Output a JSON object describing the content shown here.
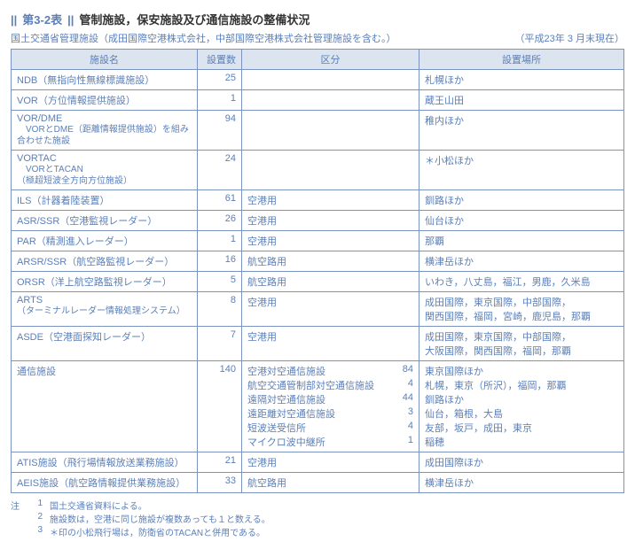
{
  "header": {
    "mark1": "||",
    "code": "第3-2表",
    "mark2": "||",
    "title": "管制施設，保安施設及び通信施設の整備状況"
  },
  "subhead": {
    "left": "国土交通省管理施設（成田国際空港株式会社，中部国際空港株式会社管理施設を含む。）",
    "right": "（平成23年 3 月末現在）"
  },
  "columns": [
    "施設名",
    "設置数",
    "区分",
    "設置場所"
  ],
  "rows": [
    {
      "name": "NDB（無指向性無線標識施設）",
      "count": "25",
      "div": "",
      "loc": "札幌ほか"
    },
    {
      "name": "VOR（方位情報提供施設）",
      "count": "1",
      "div": "",
      "loc": "蔵王山田"
    },
    {
      "name": "VOR/DME",
      "sub": "　VORとDME（距離情報提供施設）を組み合わせた施設",
      "count": "94",
      "div": "",
      "loc": "稚内ほか"
    },
    {
      "name": "VORTAC",
      "sub": "　VORとTACAN\n（極超短波全方向方位施設）",
      "count": "24",
      "div": "",
      "loc": "＊小松ほか"
    },
    {
      "name": "ILS（計器着陸装置）",
      "count": "61",
      "div": "空港用",
      "loc": "釧路ほか"
    },
    {
      "name": "ASR/SSR（空港監視レーダー）",
      "count": "26",
      "div": "空港用",
      "loc": "仙台ほか"
    },
    {
      "name": "PAR（精測進入レーダー）",
      "count": "1",
      "div": "空港用",
      "loc": "那覇"
    },
    {
      "name": "ARSR/SSR（航空路監視レーダー）",
      "count": "16",
      "div": "航空路用",
      "loc": "横津岳ほか"
    },
    {
      "name": "ORSR（洋上航空路監視レーダー）",
      "count": "5",
      "div": "航空路用",
      "loc": "いわき，八丈島，福江，男鹿，久米島"
    },
    {
      "name": "ARTS",
      "sub": "（ターミナルレーダー情報処理システム）",
      "count": "8",
      "div": "空港用",
      "loc": "成田国際，東京国際，中部国際，\n関西国際，福岡，宮崎，鹿児島，那覇"
    },
    {
      "name": "ASDE（空港面探知レーダー）",
      "count": "7",
      "div": "空港用",
      "loc": "成田国際，東京国際，中部国際，\n大阪国際，関西国際，福岡，那覇"
    },
    {
      "name": "通信施設",
      "count": "140",
      "div_multi": [
        {
          "label": "空港対空通信施設",
          "n": "84"
        },
        {
          "label": "航空交通管制部対空通信施設",
          "n": "4"
        },
        {
          "label": "遠隔対空通信施設",
          "n": "44"
        },
        {
          "label": "遠距離対空通信施設",
          "n": "3"
        },
        {
          "label": "短波送受信所",
          "n": "4"
        },
        {
          "label": "マイクロ波中継所",
          "n": "1"
        }
      ],
      "loc_multi": [
        "東京国際ほか",
        "札幌，東京（所沢），福岡，那覇",
        "釧路ほか",
        "仙台，箱根，大島",
        "友部，坂戸，成田，東京",
        "稲穂"
      ]
    },
    {
      "name": "ATIS施設（飛行場情報放送業務施設）",
      "count": "21",
      "div": "空港用",
      "loc": "成田国際ほか"
    },
    {
      "name": "AEIS施設（航空路情報提供業務施設）",
      "count": "33",
      "div": "航空路用",
      "loc": "横津岳ほか"
    }
  ],
  "notes": {
    "label": "注",
    "items": [
      {
        "idx": "1",
        "text": "国土交通省資料による。"
      },
      {
        "idx": "2",
        "text": "施設数は，空港に同じ施設が複数あっても１と数える。"
      },
      {
        "idx": "3",
        "text": "＊印の小松飛行場は，防衛省のTACANと併用である。"
      }
    ]
  },
  "style": {
    "border_color": "#7a93c0",
    "header_bg": "#dce4f0",
    "text_color": "#5b7fb8"
  }
}
